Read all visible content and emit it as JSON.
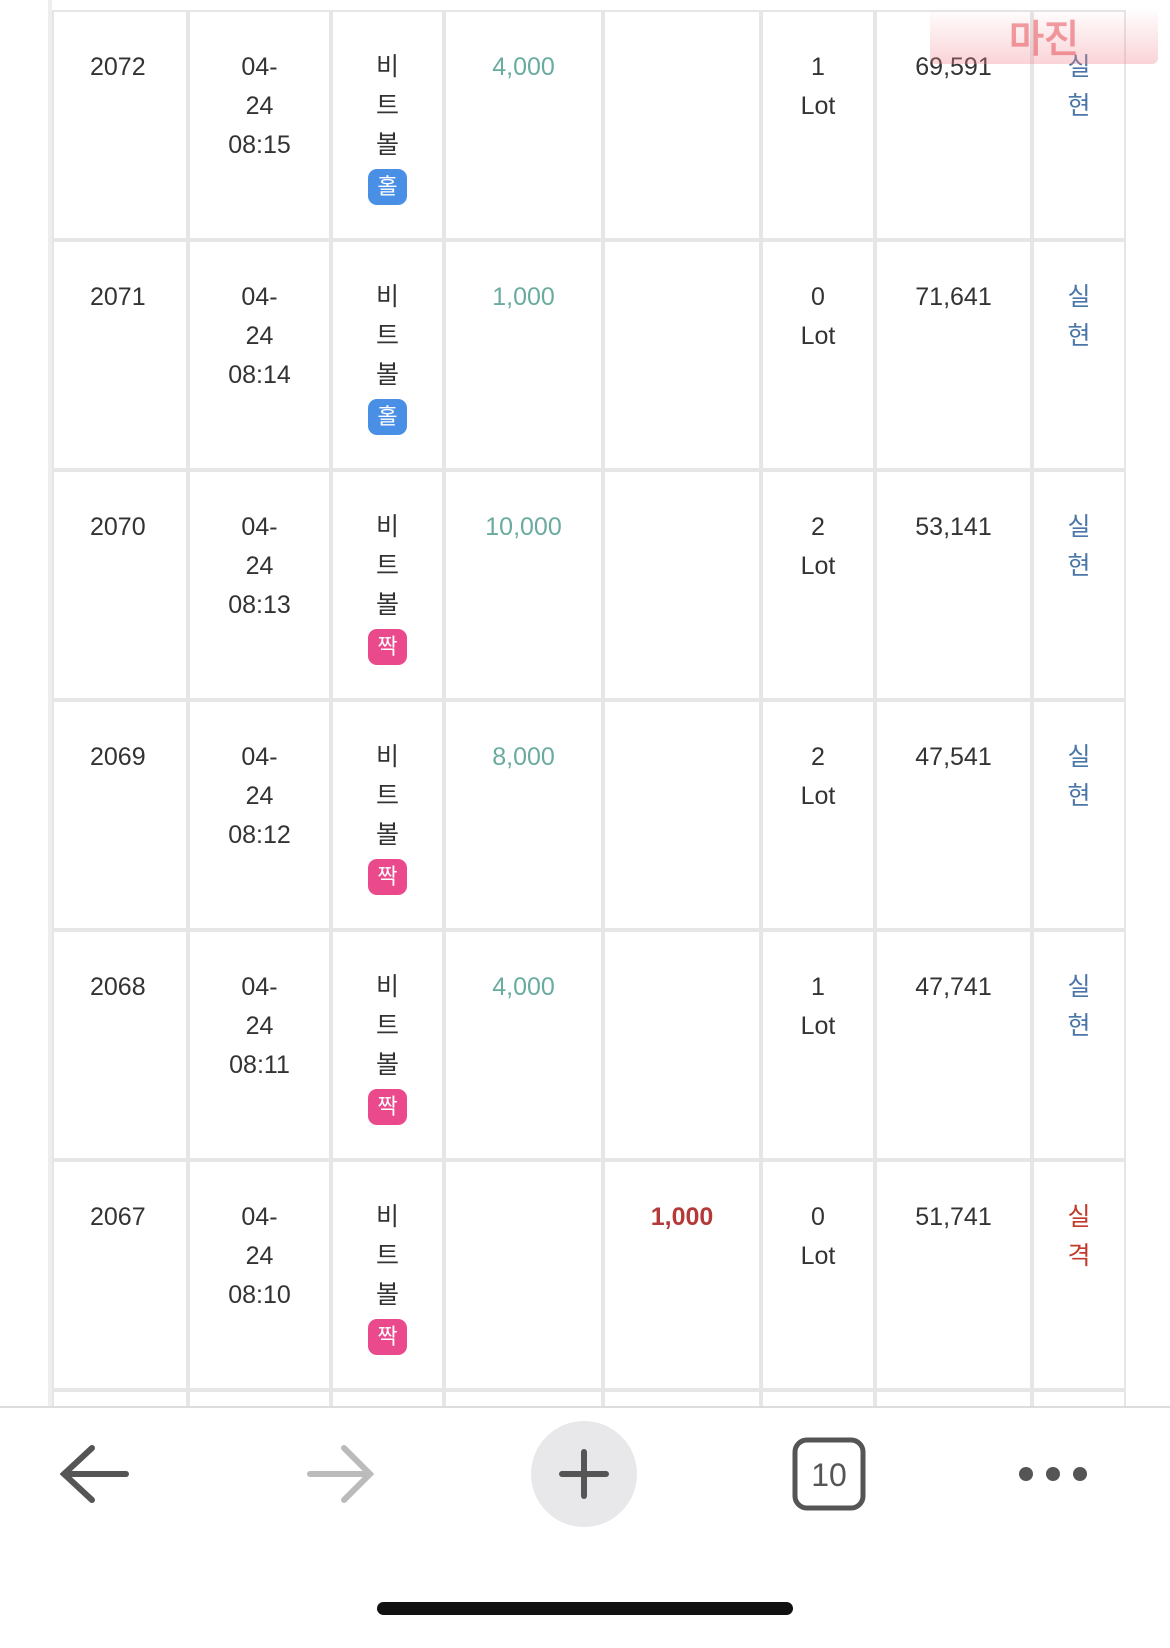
{
  "watermark": "마진",
  "rows": [
    {
      "no": "2072",
      "date": [
        "04-",
        "24",
        "08:15"
      ],
      "game": "비트볼",
      "badge": "홀",
      "win": "4,000",
      "loss": null,
      "lot": [
        "1",
        "Lot"
      ],
      "balance": "69,591",
      "result": "실현"
    },
    {
      "no": "2071",
      "date": [
        "04-",
        "24",
        "08:14"
      ],
      "game": "비트볼",
      "badge": "홀",
      "win": "1,000",
      "loss": null,
      "lot": [
        "0",
        "Lot"
      ],
      "balance": "71,641",
      "result": "실현"
    },
    {
      "no": "2070",
      "date": [
        "04-",
        "24",
        "08:13"
      ],
      "game": "비트볼",
      "badge": "짝",
      "win": "10,000",
      "loss": null,
      "lot": [
        "2",
        "Lot"
      ],
      "balance": "53,141",
      "result": "실현"
    },
    {
      "no": "2069",
      "date": [
        "04-",
        "24",
        "08:12"
      ],
      "game": "비트볼",
      "badge": "짝",
      "win": "8,000",
      "loss": null,
      "lot": [
        "2",
        "Lot"
      ],
      "balance": "47,541",
      "result": "실현"
    },
    {
      "no": "2068",
      "date": [
        "04-",
        "24",
        "08:11"
      ],
      "game": "비트볼",
      "badge": "짝",
      "win": "4,000",
      "loss": null,
      "lot": [
        "1",
        "Lot"
      ],
      "balance": "47,741",
      "result": "실현"
    },
    {
      "no": "2067",
      "date": [
        "04-",
        "24",
        "08:10"
      ],
      "game": "비트볼",
      "badge": "짝",
      "win": null,
      "loss": "1,000",
      "lot": [
        "0",
        "Lot"
      ],
      "balance": "51,741",
      "result": "실격"
    }
  ],
  "toolbar": {
    "tab_count": "10"
  }
}
